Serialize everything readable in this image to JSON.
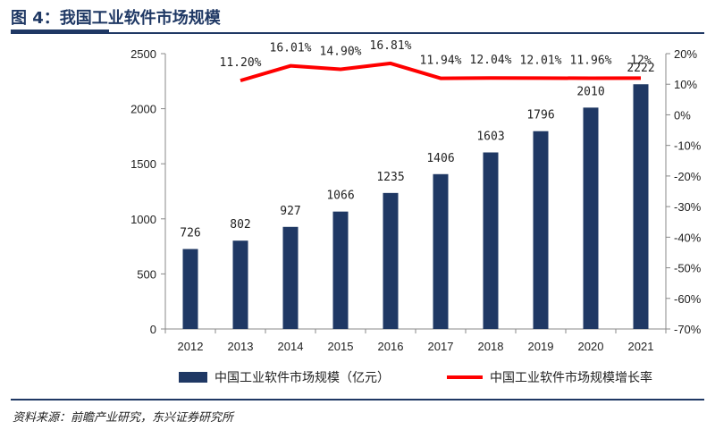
{
  "header": {
    "title": "图 4：我国工业软件市场规模"
  },
  "footer": {
    "source": "资料来源：前瞻产业研究，东兴证券研究所"
  },
  "colors": {
    "bar": "#1f3864",
    "line": "#ff0000",
    "accent": "#1f3864"
  },
  "chart_data": {
    "type": "bar+line",
    "categories": [
      "2012",
      "2013",
      "2014",
      "2015",
      "2016",
      "2017",
      "2018",
      "2019",
      "2020",
      "2021"
    ],
    "series": [
      {
        "name": "中国工业软件市场规模（亿元）",
        "type": "bar",
        "axis": "left",
        "values": [
          726,
          802,
          927,
          1066,
          1235,
          1406,
          1603,
          1796,
          2010,
          2222
        ],
        "labels": [
          "726",
          "802",
          "927",
          "1066",
          "1235",
          "1406",
          "1603",
          "1796",
          "2010",
          "2222"
        ]
      },
      {
        "name": "中国工业软件市场规模增长率",
        "type": "line",
        "axis": "right",
        "x": [
          "2013",
          "2014",
          "2015",
          "2016",
          "2017",
          "2018",
          "2019",
          "2020",
          "2021"
        ],
        "values": [
          11.2,
          16.01,
          14.9,
          16.81,
          11.94,
          12.04,
          12.01,
          11.96,
          12.0
        ],
        "labels": [
          "11.20%",
          "16.01%",
          "14.90%",
          "16.81%",
          "11.94%",
          "12.04%",
          "12.01%",
          "11.96%",
          "12%"
        ]
      }
    ],
    "y_left": {
      "min": 0,
      "max": 2500,
      "ticks": [
        "0",
        "500",
        "1000",
        "1500",
        "2000",
        "2500"
      ]
    },
    "y_right": {
      "min": -70,
      "max": 20,
      "ticks": [
        "-70%",
        "-60%",
        "-50%",
        "-40%",
        "-30%",
        "-20%",
        "-10%",
        "0%",
        "10%",
        "20%"
      ]
    },
    "legend_position": "bottom",
    "grid": false
  }
}
